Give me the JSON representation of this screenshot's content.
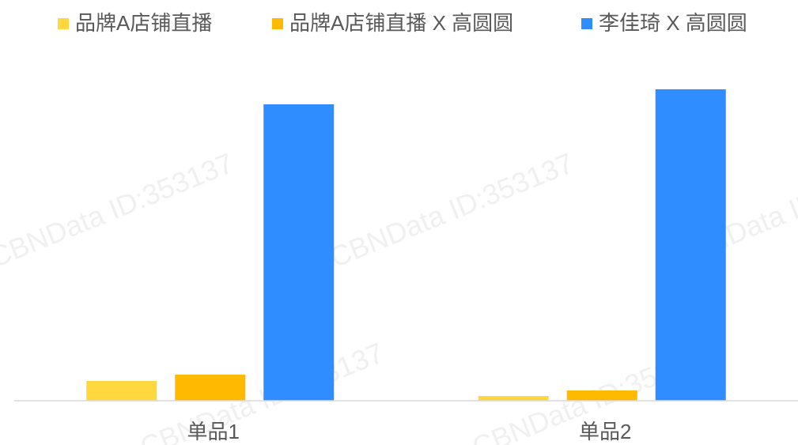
{
  "chart_data": {
    "type": "bar",
    "categories": [
      "单品1",
      "单品2"
    ],
    "series": [
      {
        "name": "品牌A店铺直播",
        "color": "#ffd73f",
        "values": [
          25,
          6
        ]
      },
      {
        "name": "品牌A店铺直播 X 高圆圆",
        "color": "#ffb900",
        "values": [
          33,
          13
        ]
      },
      {
        "name": "李佳琦 X 高圆圆",
        "color": "#2f8dff",
        "values": [
          375,
          394
        ]
      }
    ],
    "ylim": [
      0,
      400
    ],
    "legend": "top",
    "watermark": "CBNData ID:353137"
  }
}
